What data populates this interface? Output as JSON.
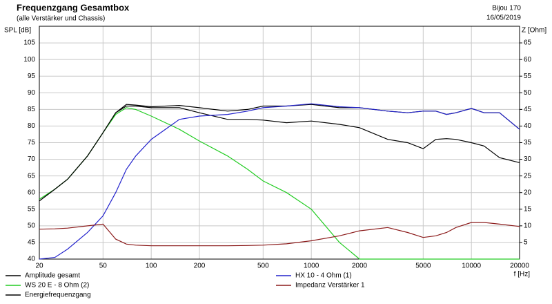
{
  "chart_data": {
    "type": "line",
    "title": "Frequenzgang Gesamtbox",
    "subtitle": "(alle Verstärker und Chassis)",
    "annotations": [
      "Bijou 170",
      "16/05/2019"
    ],
    "y_label": "SPL [dB]",
    "y2_label": "Z [Ohm]",
    "x_label": "f [Hz]",
    "log_x": true,
    "grid": true,
    "xlim": [
      20,
      20000
    ],
    "xticks": [
      20,
      50,
      100,
      200,
      500,
      1000,
      2000,
      5000,
      10000,
      20000
    ],
    "ylim": [
      40,
      110
    ],
    "yticks": [
      40,
      45,
      50,
      55,
      60,
      65,
      70,
      75,
      80,
      85,
      90,
      95,
      100,
      105
    ],
    "y2lim": [
      0,
      70
    ],
    "y2ticks": [
      5,
      10,
      15,
      20,
      25,
      30,
      35,
      40,
      45,
      50,
      55,
      60,
      65
    ],
    "x": [
      20,
      25,
      30,
      40,
      50,
      60,
      70,
      80,
      100,
      150,
      200,
      300,
      400,
      500,
      700,
      1000,
      1500,
      2000,
      3000,
      4000,
      5000,
      6000,
      7000,
      8000,
      10000,
      12000,
      15000,
      20000
    ],
    "series": [
      {
        "name": "Amplitude gesamt",
        "color": "#000000",
        "values": [
          57.5,
          61,
          64,
          71,
          78,
          84,
          86.5,
          86.3,
          85.8,
          86.2,
          85.5,
          84.5,
          85,
          86,
          86,
          86.5,
          85.5,
          85.5,
          84.5,
          84,
          84.5,
          84.5,
          83.5,
          84,
          85.3,
          84,
          84,
          79
        ]
      },
      {
        "name": "WS 20 E - 8 Ohm   (2)",
        "color": "#22cc22",
        "values": [
          58,
          61,
          64,
          71,
          78,
          83.5,
          85.5,
          85,
          83,
          79,
          75.5,
          71,
          67,
          63.5,
          60,
          55,
          45,
          40,
          40,
          40,
          40,
          40,
          40,
          40,
          40,
          40,
          40,
          40
        ]
      },
      {
        "name": "Energiefrequenzgang",
        "color": "#000000",
        "values": [
          57.5,
          61,
          64,
          71,
          78,
          84,
          86,
          86,
          85.5,
          85.5,
          84,
          82,
          82,
          81.8,
          81,
          81.5,
          80.5,
          79.5,
          76,
          75,
          73.2,
          76,
          76.2,
          76,
          75,
          74,
          70.5,
          69
        ]
      },
      {
        "name": "HX 10 - 4 Ohm (1)",
        "color": "#2222cc",
        "values": [
          40,
          40.5,
          43,
          48,
          53,
          60,
          67,
          71,
          76,
          82,
          83,
          83.5,
          84.5,
          85.5,
          86,
          86.7,
          85.8,
          85.5,
          84.5,
          84,
          84.5,
          84.5,
          83.5,
          84,
          85.3,
          84,
          84,
          79
        ]
      },
      {
        "name": "Impedanz Verstärker 1",
        "color": "#8b1a1a",
        "axis": "y2",
        "values": [
          9,
          9.1,
          9.3,
          10,
          10.5,
          6,
          4.5,
          4.2,
          4,
          4,
          4,
          4,
          4.1,
          4.2,
          4.6,
          5.5,
          7,
          8.5,
          9.5,
          8,
          6.5,
          7,
          8,
          9.5,
          11,
          11,
          10.5,
          9.8
        ]
      }
    ],
    "legend": "bottom"
  }
}
